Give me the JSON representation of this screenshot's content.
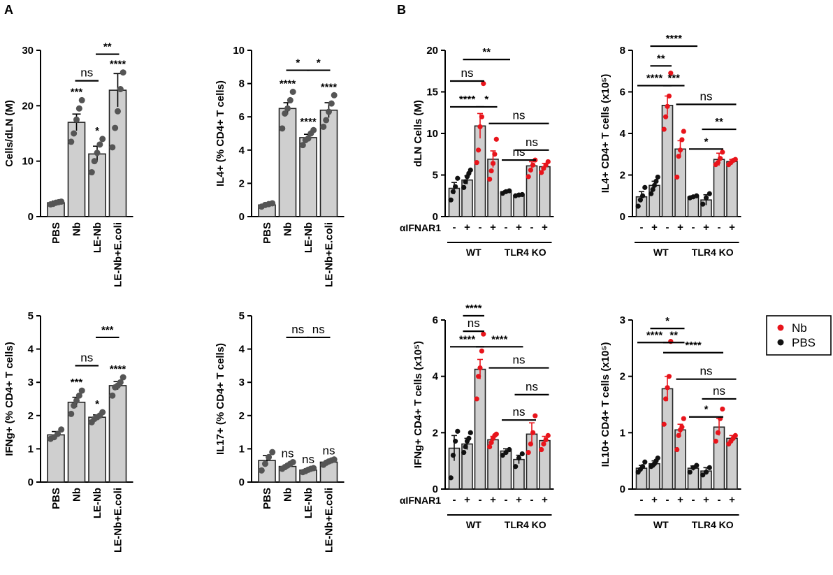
{
  "panel_labels": [
    "A",
    "B"
  ],
  "legend": {
    "items": [
      {
        "label": "Nb",
        "color": "#e8141b"
      },
      {
        "label": "PBS",
        "color": "#111111"
      }
    ]
  },
  "colors": {
    "bar_fill": "#cfcfcf",
    "bar_stroke": "#222222",
    "dot_gray": "#555555",
    "dot_red": "#e8141b",
    "dot_black": "#111111"
  },
  "chart_data": [
    {
      "id": "cells-dln",
      "type": "bar",
      "panel": "A",
      "ylabel": "Cells/dLN (M)",
      "ylim": [
        0,
        30
      ],
      "yticks": [
        "0",
        "10",
        "20",
        "30"
      ],
      "categories": [
        "PBS",
        "Nb",
        "LE-Nb",
        "LE-Nb+E.coli"
      ],
      "values": [
        2.5,
        17,
        11.3,
        22.8
      ],
      "errors": [
        0.3,
        1.5,
        1.4,
        3.0
      ],
      "points": [
        [
          2.2,
          2.3,
          2.5,
          2.6,
          2.7
        ],
        [
          13.5,
          15,
          17.5,
          19.5,
          21
        ],
        [
          8,
          10,
          11.5,
          13,
          14
        ],
        [
          12.5,
          16,
          19,
          23,
          26
        ]
      ],
      "annotations": [
        "",
        "***",
        "*",
        "****"
      ],
      "comparisons": [
        {
          "from": 1,
          "to": 2,
          "label": "ns"
        },
        {
          "from": 2,
          "to": 3,
          "label": "**"
        }
      ]
    },
    {
      "id": "il4",
      "type": "bar",
      "panel": "A",
      "ylabel": "IL4+ (% CD4+ T cells)",
      "ylim": [
        0,
        10
      ],
      "yticks": [
        "0",
        "2",
        "4",
        "6",
        "8",
        "10"
      ],
      "categories": [
        "PBS",
        "Nb",
        "LE-Nb",
        "LE-Nb+E.coli"
      ],
      "values": [
        0.7,
        6.5,
        4.75,
        6.4
      ],
      "errors": [
        0.05,
        0.35,
        0.2,
        0.45
      ],
      "points": [
        [
          0.6,
          0.7,
          0.75,
          0.8
        ],
        [
          5.3,
          6.2,
          6.5,
          7.0,
          7.5
        ],
        [
          4.3,
          4.6,
          4.7,
          5.0,
          5.2
        ],
        [
          5.4,
          5.8,
          6.3,
          6.8,
          7.3
        ]
      ],
      "annotations": [
        "",
        "****",
        "****",
        "****"
      ],
      "comparisons": [
        {
          "from": 1,
          "to": 2,
          "label": "*"
        },
        {
          "from": 2,
          "to": 3,
          "label": "*"
        }
      ]
    },
    {
      "id": "ifng",
      "type": "bar",
      "panel": "A",
      "ylabel": "IFNg+ (% CD4+ T cells)",
      "ylim": [
        0,
        5
      ],
      "yticks": [
        "0",
        "1",
        "2",
        "3",
        "4",
        "5"
      ],
      "categories": [
        "PBS",
        "Nb",
        "LE-Nb",
        "LE-Nb+E.coli"
      ],
      "values": [
        1.42,
        2.4,
        1.95,
        2.9
      ],
      "errors": [
        0.1,
        0.15,
        0.07,
        0.12
      ],
      "points": [
        [
          1.3,
          1.35,
          1.45,
          1.58
        ],
        [
          2.05,
          2.3,
          2.45,
          2.6,
          2.75
        ],
        [
          1.8,
          1.9,
          1.95,
          2.0,
          2.1
        ],
        [
          2.6,
          2.85,
          2.9,
          3.0,
          3.15
        ]
      ],
      "annotations": [
        "",
        "***",
        "*",
        "****"
      ],
      "comparisons": [
        {
          "from": 1,
          "to": 2,
          "label": "ns"
        },
        {
          "from": 2,
          "to": 3,
          "label": "***"
        }
      ]
    },
    {
      "id": "il17",
      "type": "bar",
      "panel": "A",
      "ylabel": "IL17+ (% CD4+ T cells)",
      "ylim": [
        0,
        5
      ],
      "yticks": [
        "0",
        "1",
        "2",
        "3",
        "4",
        "5"
      ],
      "categories": [
        "PBS",
        "Nb",
        "LE-Nb",
        "LE-Nb+E.coli"
      ],
      "values": [
        0.65,
        0.47,
        0.36,
        0.6
      ],
      "errors": [
        0.15,
        0.05,
        0.04,
        0.05
      ],
      "points": [
        [
          0.35,
          0.55,
          0.75,
          0.9
        ],
        [
          0.4,
          0.45,
          0.5,
          0.55,
          0.6
        ],
        [
          0.3,
          0.33,
          0.37,
          0.4,
          0.42
        ],
        [
          0.52,
          0.58,
          0.62,
          0.65,
          0.68
        ]
      ],
      "annotations": [
        "",
        "ns",
        "ns",
        "ns"
      ],
      "comparisons": [
        {
          "from": 1,
          "to": 2,
          "label": "ns"
        },
        {
          "from": 2,
          "to": 3,
          "label": "ns"
        }
      ]
    },
    {
      "id": "dln-cells",
      "type": "bar",
      "panel": "B",
      "ylabel": "dLN Cells (M)",
      "ylim": [
        0,
        20
      ],
      "yticks": [
        "0",
        "5",
        "10",
        "15",
        "20"
      ],
      "categories": [
        "-",
        "+",
        "-",
        "+",
        "-",
        "+",
        "-",
        "+"
      ],
      "row_label": "αIFNAR1",
      "groups": [
        {
          "label": "WT",
          "from": 0,
          "to": 3
        },
        {
          "label": "TLR4 KO",
          "from": 4,
          "to": 7
        }
      ],
      "values": [
        3.4,
        4.4,
        10.9,
        6.9,
        3.0,
        2.55,
        6.1,
        6.0
      ],
      "errors": [
        0.7,
        0.5,
        1.5,
        1.0,
        0.1,
        0.1,
        0.5,
        0.4
      ],
      "dot_colors": [
        "black",
        "black",
        "red",
        "red",
        "black",
        "black",
        "red",
        "red"
      ],
      "points": [
        [
          2.0,
          3.0,
          3.6,
          4.6
        ],
        [
          3.5,
          4.2,
          4.8,
          5.2,
          5.6
        ],
        [
          6.5,
          8,
          10.8,
          12,
          16
        ],
        [
          4.5,
          5.5,
          6.4,
          7.5,
          9.3
        ],
        [
          2.8,
          3.0,
          3.1
        ],
        [
          2.5,
          2.6,
          2.65
        ],
        [
          4.8,
          5.6,
          6.2,
          6.8
        ],
        [
          5.3,
          5.8,
          6.2,
          6.6
        ]
      ],
      "comparisons": [
        {
          "from": 1,
          "to": 4,
          "level": 18.9,
          "label": "**"
        },
        {
          "from": 0,
          "to": 2,
          "level": 16.3,
          "label": "ns"
        },
        {
          "from": 0,
          "to": 2,
          "level": 13.2,
          "label": "****"
        },
        {
          "from": 2,
          "to": 3,
          "level": 13.2,
          "label": "*"
        },
        {
          "from": 3,
          "to": 7,
          "level": 11.2,
          "label": "ns"
        },
        {
          "from": 5,
          "to": 7,
          "level": 8.0,
          "label": "ns"
        },
        {
          "from": 4,
          "to": 6,
          "level": 6.8,
          "label": "ns"
        }
      ]
    },
    {
      "id": "il4-cd4",
      "type": "bar",
      "panel": "B",
      "ylabel": "IL4+ CD4+ T cells (x10⁵)",
      "ylim": [
        0,
        8
      ],
      "yticks": [
        "0",
        "2",
        "4",
        "6",
        "8"
      ],
      "categories": [
        "-",
        "+",
        "-",
        "+",
        "-",
        "+",
        "-",
        "+"
      ],
      "groups": [
        {
          "label": "WT",
          "from": 0,
          "to": 3
        },
        {
          "label": "TLR4 KO",
          "from": 4,
          "to": 7
        }
      ],
      "values": [
        0.95,
        1.5,
        5.35,
        3.25,
        0.95,
        0.8,
        2.75,
        2.65
      ],
      "errors": [
        0.25,
        0.2,
        0.45,
        0.4,
        0.05,
        0.25,
        0.3,
        0.1
      ],
      "dot_colors": [
        "black",
        "black",
        "red",
        "red",
        "black",
        "black",
        "red",
        "red"
      ],
      "points": [
        [
          0.5,
          0.8,
          1.0,
          1.4
        ],
        [
          1.1,
          1.3,
          1.5,
          1.7,
          1.9
        ],
        [
          4.2,
          4.8,
          5.3,
          5.8,
          6.9
        ],
        [
          1.9,
          2.9,
          3.2,
          3.7,
          4.1
        ],
        [
          0.9,
          0.95,
          1.0
        ],
        [
          0.6,
          0.9,
          1.1
        ],
        [
          2.5,
          2.6,
          2.8,
          3.1
        ],
        [
          2.5,
          2.6,
          2.7,
          2.75
        ]
      ],
      "comparisons": [
        {
          "from": 1,
          "to": 4,
          "level": 8.2,
          "label": "****"
        },
        {
          "from": 1,
          "to": 2,
          "level": 7.25,
          "label": "**"
        },
        {
          "from": 0,
          "to": 2,
          "level": 6.3,
          "label": "****"
        },
        {
          "from": 2,
          "to": 3,
          "level": 6.3,
          "label": "***"
        },
        {
          "from": 3,
          "to": 7,
          "level": 5.4,
          "label": "ns"
        },
        {
          "from": 5,
          "to": 7,
          "level": 4.2,
          "label": "**"
        },
        {
          "from": 4,
          "to": 6,
          "level": 3.25,
          "label": "*"
        }
      ]
    },
    {
      "id": "ifng-cd4",
      "type": "bar",
      "panel": "B",
      "ylabel": "IFNg+ CD4+ T cells (x10⁵)",
      "ylim": [
        0,
        6
      ],
      "yticks": [
        "0",
        "2",
        "4",
        "6"
      ],
      "categories": [
        "-",
        "+",
        "-",
        "+",
        "-",
        "+",
        "-",
        "+"
      ],
      "row_label": "αIFNAR1",
      "groups": [
        {
          "label": "WT",
          "from": 0,
          "to": 3
        },
        {
          "label": "TLR4 KO",
          "from": 4,
          "to": 7
        }
      ],
      "values": [
        1.45,
        1.6,
        4.25,
        1.75,
        1.35,
        1.05,
        1.95,
        1.72
      ],
      "errors": [
        0.45,
        0.2,
        0.35,
        0.12,
        0.08,
        0.15,
        0.4,
        0.15
      ],
      "dot_colors": [
        "black",
        "black",
        "red",
        "red",
        "black",
        "black",
        "red",
        "red"
      ],
      "points": [
        [
          0.4,
          1.2,
          1.7,
          2.05
        ],
        [
          1.3,
          1.5,
          1.7,
          1.8,
          2.0
        ],
        [
          3.2,
          4.0,
          4.3,
          4.9,
          5.5
        ],
        [
          1.5,
          1.65,
          1.8,
          1.9,
          1.95
        ],
        [
          1.2,
          1.3,
          1.4
        ],
        [
          0.8,
          1.1,
          1.25
        ],
        [
          1.3,
          1.6,
          2.0,
          2.6
        ],
        [
          1.4,
          1.6,
          1.75,
          1.9
        ]
      ],
      "comparisons": [
        {
          "from": 1,
          "to": 2,
          "level": 6.15,
          "label": "****"
        },
        {
          "from": 1,
          "to": 2,
          "level": 5.6,
          "label": "ns"
        },
        {
          "from": 0,
          "to": 2,
          "level": 5.05,
          "label": "****"
        },
        {
          "from": 2,
          "to": 5,
          "level": 5.05,
          "label": "****"
        },
        {
          "from": 3,
          "to": 7,
          "level": 4.3,
          "label": "ns"
        },
        {
          "from": 5,
          "to": 7,
          "level": 3.35,
          "label": "ns"
        },
        {
          "from": 4,
          "to": 6,
          "level": 2.45,
          "label": "ns"
        }
      ]
    },
    {
      "id": "il10-cd4",
      "type": "bar",
      "panel": "B",
      "ylabel": "IL10+ CD4+ T cells (x10⁵)",
      "ylim": [
        0,
        3
      ],
      "yticks": [
        "0",
        "1",
        "2",
        "3"
      ],
      "categories": [
        "-",
        "+",
        "-",
        "+",
        "-",
        "+",
        "-",
        "+"
      ],
      "groups": [
        {
          "label": "WT",
          "from": 0,
          "to": 3
        },
        {
          "label": "TLR4 KO",
          "from": 4,
          "to": 7
        }
      ],
      "values": [
        0.37,
        0.45,
        1.78,
        1.05,
        0.37,
        0.32,
        1.1,
        0.9
      ],
      "errors": [
        0.05,
        0.05,
        0.22,
        0.1,
        0.04,
        0.06,
        0.15,
        0.05
      ],
      "dot_colors": [
        "black",
        "black",
        "red",
        "red",
        "black",
        "black",
        "red",
        "red"
      ],
      "points": [
        [
          0.3,
          0.35,
          0.4,
          0.48
        ],
        [
          0.4,
          0.42,
          0.45,
          0.5,
          0.55
        ],
        [
          1.15,
          1.6,
          1.8,
          2.0,
          2.62
        ],
        [
          0.7,
          0.95,
          1.05,
          1.1,
          1.25
        ],
        [
          0.3,
          0.38,
          0.42
        ],
        [
          0.25,
          0.3,
          0.38
        ],
        [
          0.85,
          1.0,
          1.25,
          1.42
        ],
        [
          0.8,
          0.85,
          0.9,
          0.95
        ]
      ],
      "comparisons": [
        {
          "from": 1,
          "to": 3,
          "level": 2.85,
          "label": "*"
        },
        {
          "from": 0,
          "to": 2,
          "level": 2.6,
          "label": "****"
        },
        {
          "from": 2,
          "to": 3,
          "level": 2.6,
          "label": "**"
        },
        {
          "from": 2,
          "to": 6,
          "level": 2.42,
          "label": "****"
        },
        {
          "from": 3,
          "to": 7,
          "level": 1.95,
          "label": "ns"
        },
        {
          "from": 5,
          "to": 7,
          "level": 1.6,
          "label": "ns"
        },
        {
          "from": 4,
          "to": 6,
          "level": 1.28,
          "label": "*"
        }
      ]
    }
  ]
}
